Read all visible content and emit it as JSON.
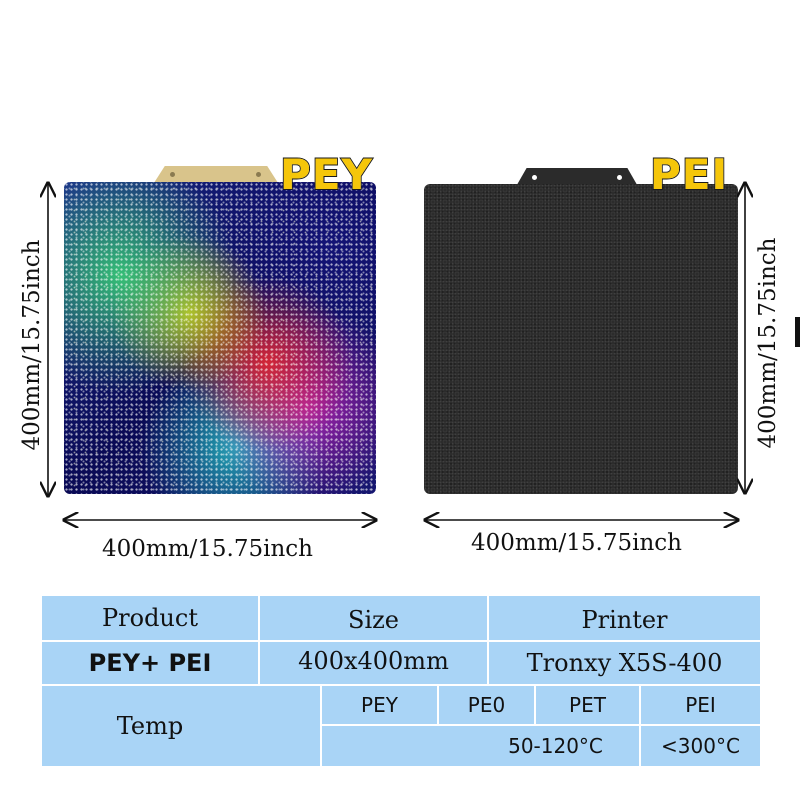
{
  "plates": {
    "left": {
      "badge": "PEY"
    },
    "right": {
      "badge": "PEI"
    }
  },
  "dimensions": {
    "left_height": "400mm/15.75inch",
    "left_width": "400mm/15.75inch",
    "right_height": "400mm/15.75inch",
    "right_width": "400mm/15.75inch"
  },
  "table": {
    "headers": {
      "product": "Product",
      "size": "Size",
      "printer": "Printer"
    },
    "row": {
      "product": "PEY+ PEI",
      "size": "400x400mm",
      "printer": "Tronxy X5S-400"
    },
    "temp": {
      "label": "Temp",
      "materials": [
        "PEY",
        "PE0",
        "PET",
        "PEI"
      ],
      "range_a": "50-120°C",
      "range_b": "<300°C"
    }
  },
  "colors": {
    "table_bg": "#a9d4f6",
    "badge": "#f5c60a",
    "pei_plate": "#2a2a2a"
  }
}
